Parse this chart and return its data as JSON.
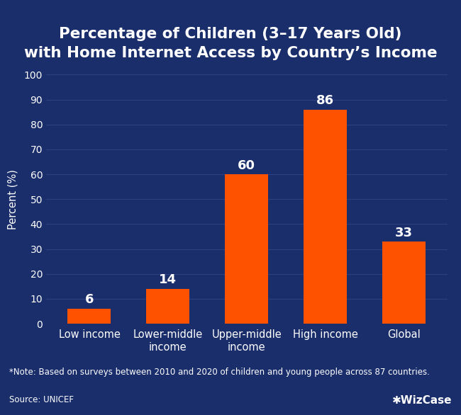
{
  "title_line1": "Percentage of Children (3–17 Years Old)",
  "title_line2": "with Home Internet Access by Country’s Income",
  "categories": [
    "Low income",
    "Lower-middle\nincome",
    "Upper-middle\nincome",
    "High income",
    "Global"
  ],
  "values": [
    6,
    14,
    60,
    86,
    33
  ],
  "bar_color": "#FF5200",
  "background_color": "#1a2e6c",
  "text_color": "#ffffff",
  "ylabel": "Percent (%)",
  "ylim": [
    0,
    100
  ],
  "yticks": [
    0,
    10,
    20,
    30,
    40,
    50,
    60,
    70,
    80,
    90,
    100
  ],
  "grid_color": "#2e4080",
  "note_text": "*Note: Based on surveys between 2010 and 2020 of children and young people across 87 countries.",
  "source_text": "Source: UNICEF",
  "watermark_text": "✱WizCase",
  "title_fontsize": 15.5,
  "label_fontsize": 10.5,
  "tick_fontsize": 10,
  "bar_label_fontsize": 13,
  "note_fontsize": 8.5,
  "source_fontsize": 8.5,
  "watermark_fontsize": 11
}
